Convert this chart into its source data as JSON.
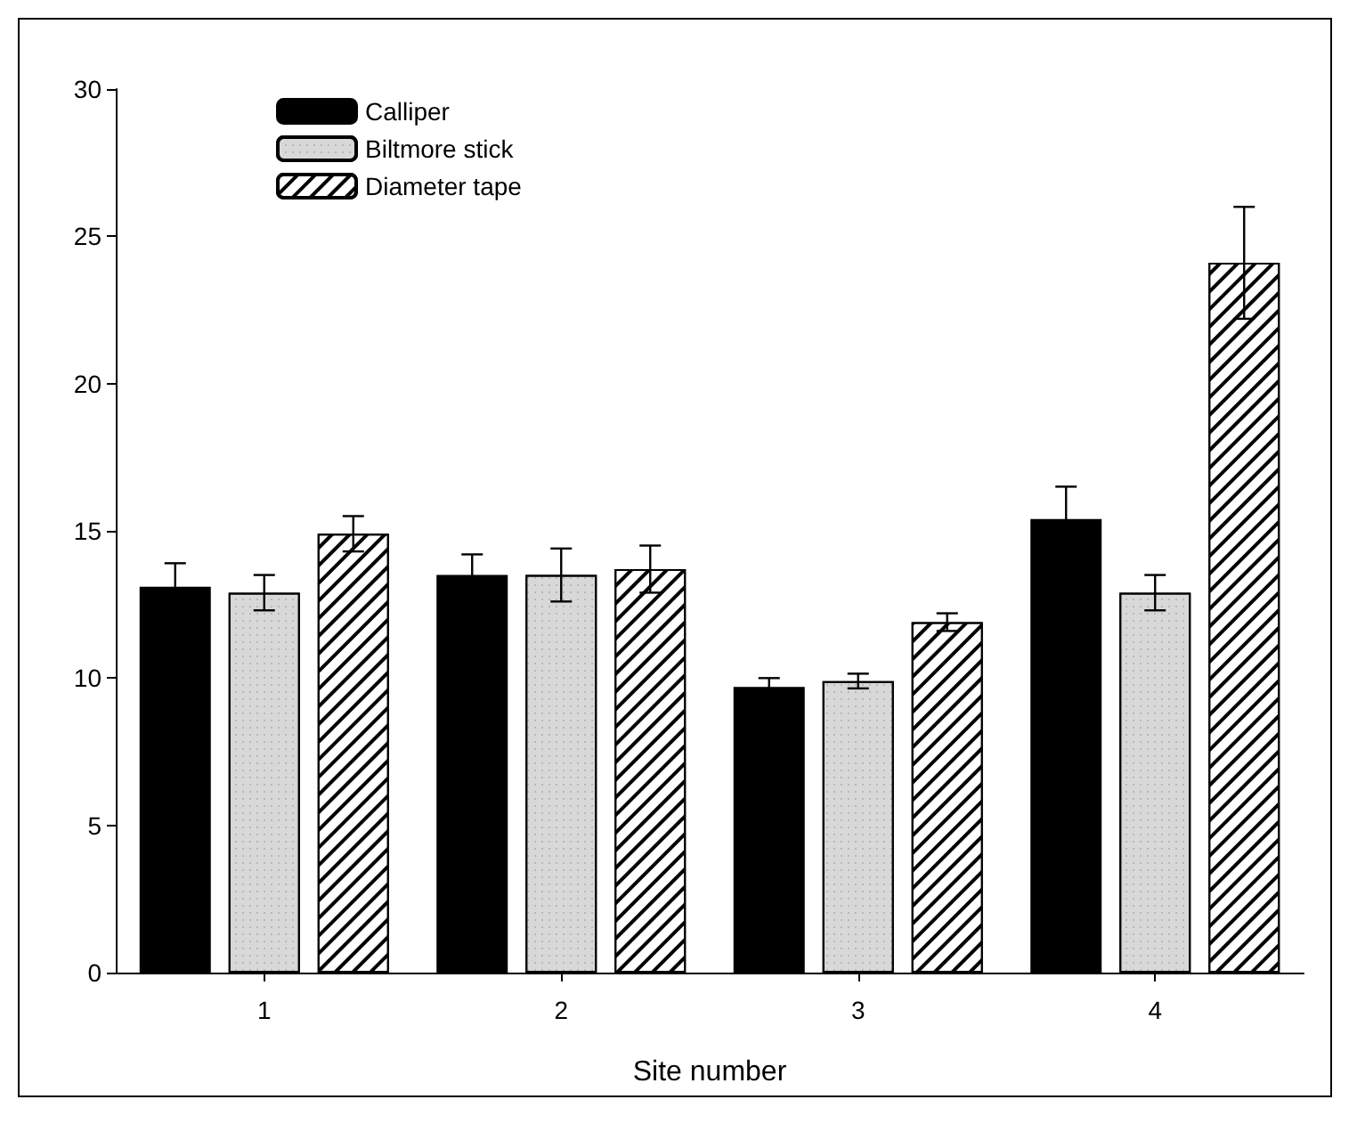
{
  "chart_data": {
    "type": "bar",
    "xlabel": "Site number",
    "categories": [
      "1",
      "2",
      "3",
      "4"
    ],
    "series": [
      {
        "name": "Calliper",
        "color": "#000000",
        "values": [
          13.1,
          13.5,
          9.7,
          15.4
        ],
        "errors": [
          0.8,
          0.7,
          0.3,
          1.1
        ]
      },
      {
        "name": "Biltmore stick",
        "color": "#d8d8d8",
        "values": [
          12.9,
          13.5,
          9.9,
          12.9
        ],
        "errors": [
          0.6,
          0.9,
          0.25,
          0.6
        ]
      },
      {
        "name": "Diameter tape",
        "color": "#ffffff",
        "values": [
          14.9,
          13.7,
          11.9,
          24.1
        ],
        "errors": [
          0.6,
          0.8,
          0.3,
          1.9
        ]
      }
    ],
    "ylim": [
      0,
      30
    ],
    "yticks": [
      0,
      5,
      10,
      15,
      20,
      25,
      30
    ],
    "grid": false,
    "legend": "top left"
  }
}
